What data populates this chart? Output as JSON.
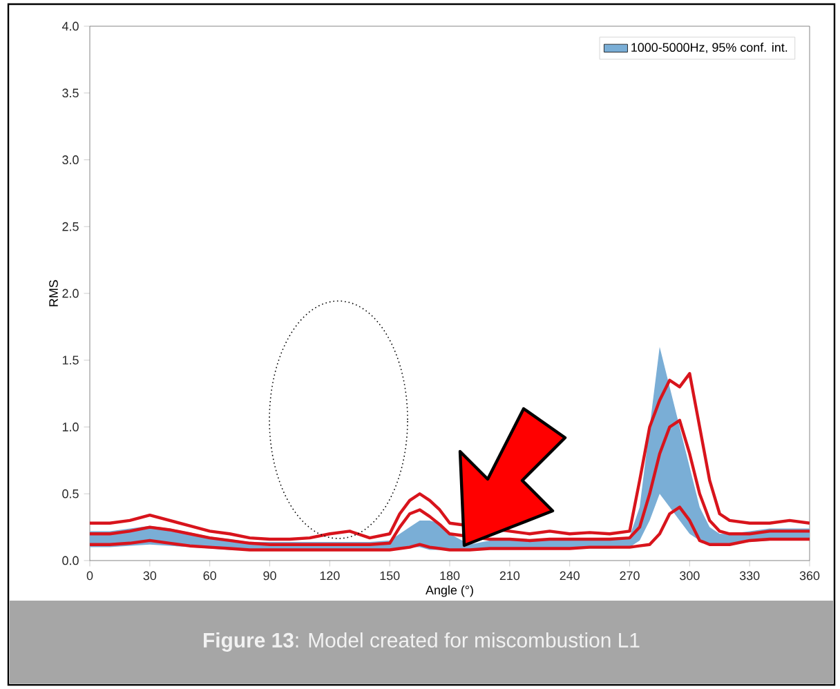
{
  "chart_data": {
    "type": "line",
    "xlabel": "Angle (°)",
    "ylabel": "RMS",
    "annotations": [
      "**Figure 13**: Model created for miscombustion L1"
    ],
    "x": [
      0,
      10,
      20,
      30,
      40,
      50,
      60,
      70,
      80,
      90,
      100,
      110,
      120,
      130,
      140,
      150,
      155,
      160,
      165,
      170,
      175,
      180,
      190,
      200,
      210,
      220,
      230,
      240,
      250,
      260,
      270,
      275,
      280,
      285,
      290,
      295,
      300,
      305,
      310,
      315,
      320,
      330,
      340,
      350,
      360
    ],
    "xlim": [
      0,
      360
    ],
    "xticks": [
      0,
      30,
      60,
      90,
      120,
      150,
      180,
      210,
      240,
      270,
      300,
      330,
      360
    ],
    "ylim": [
      0,
      4
    ],
    "yticks": [
      {
        "value": 0,
        "label": "0.0"
      },
      {
        "value": 0.5,
        "label": "0.5"
      },
      {
        "value": 1,
        "label": "1.0"
      },
      {
        "value": 1.5,
        "label": "1.5"
      },
      {
        "value": 2,
        "label": "2.0"
      },
      {
        "value": 2.5,
        "label": "2.5"
      },
      {
        "value": 3,
        "label": "3.0"
      },
      {
        "value": 3.5,
        "label": "3.5"
      },
      {
        "value": 4,
        "label": "4.0"
      }
    ],
    "legend": "top right",
    "series": [
      {
        "type": "area",
        "name": "1000-5000Hz, 95% conf. int.",
        "color": "#7aaed6",
        "values": [
          null,
          null,
          null,
          null,
          null,
          null,
          null,
          null,
          null,
          null,
          null,
          null,
          null,
          null,
          null,
          null,
          null,
          null,
          null,
          null,
          null,
          null,
          null,
          null,
          null,
          null,
          null,
          null,
          null,
          null,
          null,
          null,
          null,
          null,
          null,
          null,
          null,
          null,
          null,
          null,
          null,
          null,
          null,
          null,
          null
        ],
        "lower": [
          0.1,
          0.1,
          0.11,
          0.12,
          0.11,
          0.1,
          0.09,
          0.08,
          0.08,
          0.08,
          0.08,
          0.08,
          0.08,
          0.08,
          0.08,
          0.08,
          0.09,
          0.1,
          0.1,
          0.08,
          0.08,
          0.08,
          0.08,
          0.09,
          0.09,
          0.09,
          0.09,
          0.09,
          0.09,
          0.09,
          0.1,
          0.15,
          0.3,
          0.5,
          0.4,
          0.3,
          0.2,
          0.15,
          0.12,
          0.12,
          0.12,
          0.14,
          0.15,
          0.15,
          0.15
        ],
        "upper": [
          0.22,
          0.22,
          0.24,
          0.26,
          0.24,
          0.21,
          0.18,
          0.16,
          0.14,
          0.14,
          0.14,
          0.14,
          0.14,
          0.14,
          0.14,
          0.15,
          0.2,
          0.25,
          0.3,
          0.3,
          0.28,
          0.2,
          0.12,
          0.15,
          0.15,
          0.15,
          0.15,
          0.15,
          0.15,
          0.15,
          0.18,
          0.4,
          1.0,
          1.6,
          1.3,
          1.0,
          0.7,
          0.4,
          0.25,
          0.2,
          0.2,
          0.22,
          0.24,
          0.24,
          0.24
        ]
      },
      {
        "color": "#d8141c",
        "values": [
          0.12,
          0.12,
          0.13,
          0.15,
          0.13,
          0.11,
          0.1,
          0.09,
          0.08,
          0.08,
          0.08,
          0.08,
          0.08,
          0.08,
          0.08,
          0.08,
          0.09,
          0.1,
          0.12,
          0.1,
          0.09,
          0.08,
          0.08,
          0.09,
          0.09,
          0.09,
          0.09,
          0.09,
          0.1,
          0.1,
          0.1,
          0.11,
          0.12,
          0.2,
          0.35,
          0.4,
          0.3,
          0.15,
          0.12,
          0.12,
          0.12,
          0.15,
          0.16,
          0.16,
          0.16
        ]
      },
      {
        "color": "#d8141c",
        "values": [
          0.2,
          0.2,
          0.22,
          0.25,
          0.23,
          0.2,
          0.17,
          0.15,
          0.13,
          0.12,
          0.12,
          0.12,
          0.12,
          0.12,
          0.12,
          0.13,
          0.25,
          0.35,
          0.38,
          0.33,
          0.27,
          0.2,
          null,
          0.16,
          0.16,
          0.15,
          0.16,
          0.16,
          0.16,
          0.16,
          0.17,
          0.25,
          0.5,
          0.8,
          1.0,
          1.05,
          0.8,
          0.5,
          0.3,
          0.22,
          0.2,
          0.2,
          0.22,
          0.22,
          0.22
        ]
      },
      {
        "color": "#d8141c",
        "values": [
          0.28,
          0.28,
          0.3,
          0.34,
          0.3,
          0.26,
          0.22,
          0.2,
          0.17,
          0.16,
          0.16,
          0.17,
          0.2,
          0.22,
          0.17,
          0.2,
          0.35,
          0.45,
          0.5,
          0.45,
          0.38,
          0.28,
          null,
          null,
          0.22,
          0.2,
          0.22,
          0.2,
          0.21,
          0.2,
          0.22,
          0.6,
          1.0,
          1.2,
          1.35,
          1.3,
          1.4,
          1.0,
          0.6,
          0.35,
          0.3,
          0.28,
          0.28,
          0.3,
          0.28
        ]
      }
    ]
  }
}
